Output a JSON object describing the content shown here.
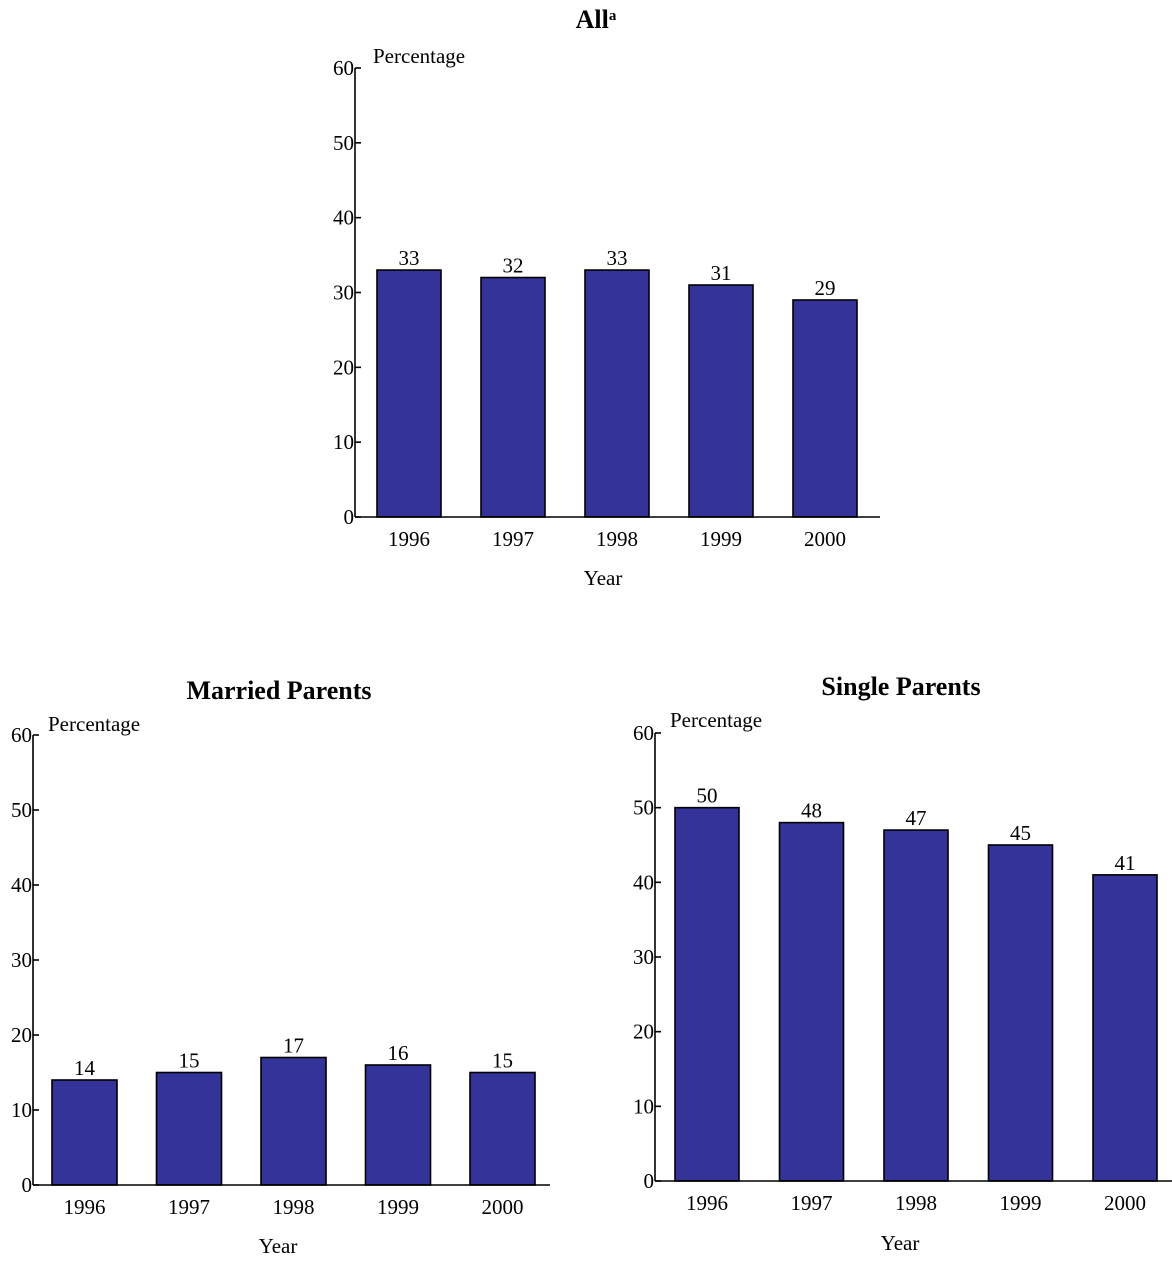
{
  "colors": {
    "bar_fill": "#333399",
    "axis": "#000000",
    "background": "#ffffff"
  },
  "chart_data": [
    {
      "type": "bar",
      "title": "All",
      "title_superscript": "a",
      "categories": [
        "1996",
        "1997",
        "1998",
        "1999",
        "2000"
      ],
      "values": [
        33,
        32,
        33,
        31,
        29
      ],
      "value_labels": [
        "33",
        "32",
        "33",
        "31",
        "29"
      ],
      "xlabel": "Year",
      "ylabel": "Percentage",
      "ylim": [
        0,
        60
      ],
      "yticks": [
        0,
        10,
        20,
        30,
        40,
        50,
        60
      ],
      "ytick_labels": [
        "0",
        "10",
        "20",
        "30",
        "40",
        "50",
        "60"
      ],
      "grid": false,
      "legend": "none"
    },
    {
      "type": "bar",
      "title": "Married Parents",
      "title_superscript": "",
      "categories": [
        "1996",
        "1997",
        "1998",
        "1999",
        "2000"
      ],
      "values": [
        14,
        15,
        17,
        16,
        15
      ],
      "value_labels": [
        "14",
        "15",
        "17",
        "16",
        "15"
      ],
      "xlabel": "Year",
      "ylabel": "Percentage",
      "ylim": [
        0,
        60
      ],
      "yticks": [
        0,
        10,
        20,
        30,
        40,
        50,
        60
      ],
      "ytick_labels": [
        "0",
        "10",
        "20",
        "30",
        "40",
        "50",
        "60"
      ],
      "grid": false,
      "legend": "none"
    },
    {
      "type": "bar",
      "title": "Single Parents",
      "title_superscript": "",
      "categories": [
        "1996",
        "1997",
        "1998",
        "1999",
        "2000"
      ],
      "values": [
        50,
        48,
        47,
        45,
        41
      ],
      "value_labels": [
        "50",
        "48",
        "47",
        "45",
        "41"
      ],
      "xlabel": "Year",
      "ylabel": "Percentage",
      "ylim": [
        0,
        60
      ],
      "yticks": [
        0,
        10,
        20,
        30,
        40,
        50,
        60
      ],
      "ytick_labels": [
        "0",
        "10",
        "20",
        "30",
        "40",
        "50",
        "60"
      ],
      "grid": false,
      "legend": "none"
    }
  ]
}
